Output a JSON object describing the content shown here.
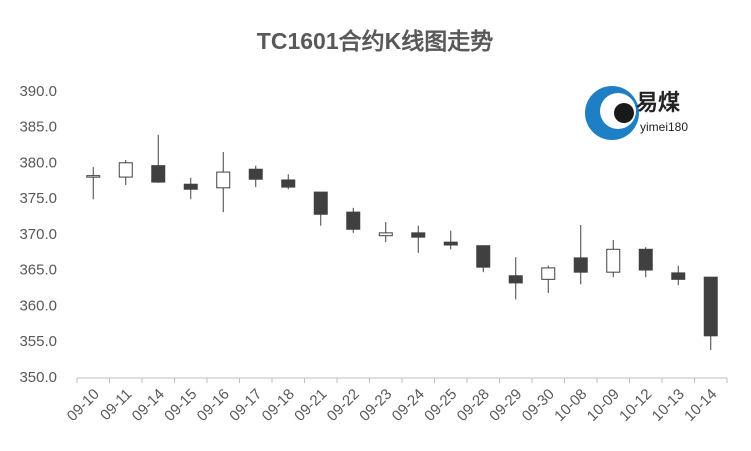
{
  "chart_data": {
    "type": "candlestick",
    "title": "TC1601合约K线图走势",
    "categories": [
      "09-10",
      "09-11",
      "09-14",
      "09-15",
      "09-16",
      "09-17",
      "09-18",
      "09-21",
      "09-22",
      "09-23",
      "09-24",
      "09-25",
      "09-28",
      "09-29",
      "09-30",
      "10-08",
      "10-09",
      "10-12",
      "10-13",
      "10-14"
    ],
    "open": [
      378.2,
      378.1,
      379.7,
      377.1,
      376.6,
      379.2,
      377.7,
      376.0,
      373.2,
      369.9,
      370.3,
      369.0,
      368.5,
      364.3,
      363.8,
      366.8,
      364.8,
      368.0,
      364.7,
      364.1
    ],
    "high": [
      379.5,
      380.5,
      384.0,
      378.0,
      381.6,
      379.7,
      378.5,
      376.0,
      373.8,
      371.8,
      371.3,
      370.6,
      368.5,
      366.9,
      365.7,
      371.4,
      369.3,
      368.3,
      365.7,
      364.1
    ],
    "low": [
      375.0,
      377.0,
      377.3,
      375.0,
      373.2,
      376.7,
      376.4,
      371.3,
      370.3,
      369.0,
      367.5,
      368.0,
      364.8,
      361.0,
      361.9,
      363.1,
      364.1,
      364.1,
      363.0,
      353.9
    ],
    "close": [
      378.3,
      380.1,
      377.4,
      376.4,
      378.8,
      377.8,
      376.7,
      372.9,
      370.8,
      370.3,
      369.7,
      368.6,
      365.5,
      363.3,
      365.4,
      364.8,
      368.0,
      365.1,
      363.8,
      355.9
    ],
    "up_color": "#ffffff",
    "down_color": "#404040",
    "edge_color": "#404040",
    "ylim": [
      350,
      390
    ],
    "yticks": [
      {
        "value": 350,
        "label": "350.0"
      },
      {
        "value": 355,
        "label": "355.0"
      },
      {
        "value": 360,
        "label": "360.0"
      },
      {
        "value": 365,
        "label": "365.0"
      },
      {
        "value": 370,
        "label": "370.0"
      },
      {
        "value": 375,
        "label": "375.0"
      },
      {
        "value": 380,
        "label": "380.0"
      },
      {
        "value": 385,
        "label": "385.0"
      },
      {
        "value": 390,
        "label": "390.0"
      }
    ],
    "grid": false
  },
  "logo": {
    "name": "易煤",
    "sub": "yimei180"
  }
}
